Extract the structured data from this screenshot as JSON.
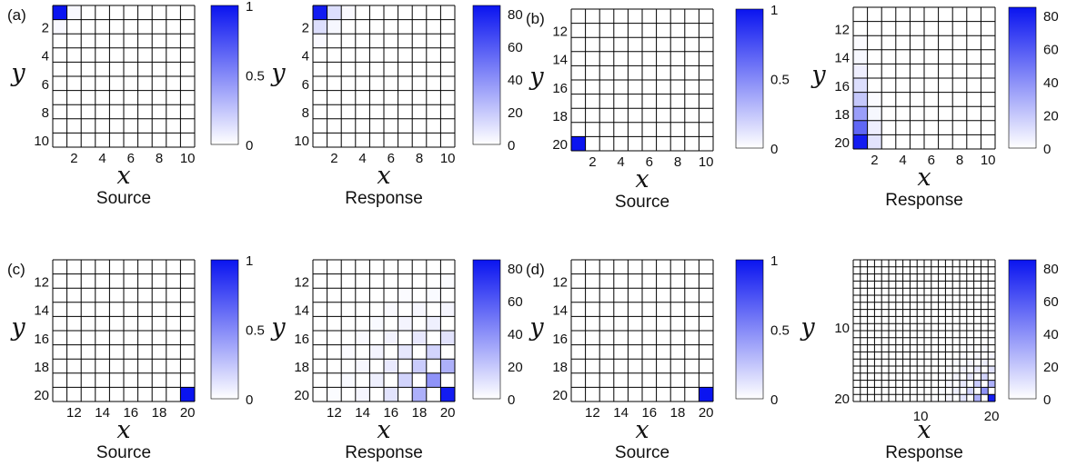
{
  "colors": {
    "max": "#0a14f0",
    "min": "#ffffff",
    "grid": "#000000"
  },
  "chart_data": [
    {
      "type": "heatmap",
      "panel": "(a)",
      "caption": "Source",
      "xlabel": "x",
      "ylabel": "y",
      "xlim": [
        1,
        10
      ],
      "ylim": [
        1,
        10
      ],
      "y_reversed": true,
      "xticks": [
        "2",
        "4",
        "6",
        "8",
        "10"
      ],
      "yticks": [
        "2",
        "4",
        "6",
        "8",
        "10"
      ],
      "colorbar": {
        "range": [
          0,
          1
        ],
        "ticks": [
          "0",
          "0.5",
          "1"
        ]
      },
      "cells": [
        {
          "x": 1,
          "y": 1,
          "v": 1
        },
        {
          "x": 2,
          "y": 1,
          "v": 0.03
        },
        {
          "x": 1,
          "y": 2,
          "v": 0.03
        }
      ]
    },
    {
      "type": "heatmap",
      "panel": "",
      "caption": "Response",
      "xlabel": "x",
      "ylabel": "y",
      "xlim": [
        1,
        10
      ],
      "ylim": [
        1,
        10
      ],
      "y_reversed": true,
      "xticks": [
        "2",
        "4",
        "6",
        "8",
        "10"
      ],
      "yticks": [
        "2",
        "4",
        "6",
        "8",
        "10"
      ],
      "colorbar": {
        "range": [
          0,
          85
        ],
        "ticks": [
          "0",
          "20",
          "40",
          "60",
          "80"
        ]
      },
      "cells": [
        {
          "x": 1,
          "y": 1,
          "v": 82
        },
        {
          "x": 2,
          "y": 1,
          "v": 12
        },
        {
          "x": 1,
          "y": 2,
          "v": 12
        },
        {
          "x": 3,
          "y": 1,
          "v": 2
        },
        {
          "x": 1,
          "y": 3,
          "v": 2
        },
        {
          "x": 2,
          "y": 2,
          "v": 3
        }
      ]
    },
    {
      "type": "heatmap",
      "panel": "(b)",
      "caption": "Source",
      "xlabel": "x",
      "ylabel": "y",
      "xlim": [
        1,
        10
      ],
      "ylim": [
        11,
        20
      ],
      "y_reversed": true,
      "xticks": [
        "2",
        "4",
        "6",
        "8",
        "10"
      ],
      "yticks": [
        "12",
        "14",
        "16",
        "18",
        "20"
      ],
      "colorbar": {
        "range": [
          0,
          1
        ],
        "ticks": [
          "0",
          "0.5",
          "1"
        ]
      },
      "cells": [
        {
          "x": 1,
          "y": 20,
          "v": 1
        }
      ]
    },
    {
      "type": "heatmap",
      "panel": "",
      "caption": "Response",
      "xlabel": "x",
      "ylabel": "y",
      "xlim": [
        1,
        10
      ],
      "ylim": [
        11,
        20
      ],
      "y_reversed": true,
      "xticks": [
        "2",
        "4",
        "6",
        "8",
        "10"
      ],
      "yticks": [
        "12",
        "14",
        "16",
        "18",
        "20"
      ],
      "colorbar": {
        "range": [
          0,
          85
        ],
        "ticks": [
          "0",
          "20",
          "40",
          "60",
          "80"
        ]
      },
      "cells": [
        {
          "x": 1,
          "y": 20,
          "v": 82
        },
        {
          "x": 1,
          "y": 19,
          "v": 55
        },
        {
          "x": 1,
          "y": 18,
          "v": 35
        },
        {
          "x": 1,
          "y": 17,
          "v": 20
        },
        {
          "x": 1,
          "y": 16,
          "v": 12
        },
        {
          "x": 1,
          "y": 15,
          "v": 6
        },
        {
          "x": 1,
          "y": 14,
          "v": 3
        },
        {
          "x": 1,
          "y": 13,
          "v": 1.5
        },
        {
          "x": 2,
          "y": 20,
          "v": 10
        },
        {
          "x": 2,
          "y": 19,
          "v": 6
        },
        {
          "x": 2,
          "y": 18,
          "v": 3
        },
        {
          "x": 2,
          "y": 17,
          "v": 1.5
        }
      ]
    },
    {
      "type": "heatmap",
      "panel": "(c)",
      "caption": "Source",
      "xlabel": "x",
      "ylabel": "y",
      "xlim": [
        11,
        20
      ],
      "ylim": [
        11,
        20
      ],
      "y_reversed": true,
      "xticks": [
        "12",
        "14",
        "16",
        "18",
        "20"
      ],
      "yticks": [
        "12",
        "14",
        "16",
        "18",
        "20"
      ],
      "colorbar": {
        "range": [
          0,
          1
        ],
        "ticks": [
          "0",
          "0.5",
          "1"
        ]
      },
      "cells": [
        {
          "x": 20,
          "y": 20,
          "v": 1
        }
      ]
    },
    {
      "type": "heatmap",
      "panel": "",
      "caption": "Response",
      "xlabel": "x",
      "ylabel": "y",
      "xlim": [
        11,
        20
      ],
      "ylim": [
        11,
        20
      ],
      "y_reversed": true,
      "xticks": [
        "12",
        "14",
        "16",
        "18",
        "20"
      ],
      "yticks": [
        "12",
        "14",
        "16",
        "18",
        "20"
      ],
      "colorbar": {
        "range": [
          0,
          85
        ],
        "ticks": [
          "0",
          "20",
          "40",
          "60",
          "80"
        ]
      },
      "pattern": "checkerboard-corner",
      "corner": [
        20,
        20
      ],
      "peak": 82
    },
    {
      "type": "heatmap",
      "panel": "(d)",
      "caption": "Source",
      "xlabel": "x",
      "ylabel": "y",
      "xlim": [
        11,
        20
      ],
      "ylim": [
        11,
        20
      ],
      "y_reversed": true,
      "xticks": [
        "12",
        "14",
        "16",
        "18",
        "20"
      ],
      "yticks": [
        "12",
        "14",
        "16",
        "18",
        "20"
      ],
      "colorbar": {
        "range": [
          0,
          1
        ],
        "ticks": [
          "0",
          "0.5",
          "1"
        ]
      },
      "cells": [
        {
          "x": 20,
          "y": 20,
          "v": 1
        }
      ]
    },
    {
      "type": "heatmap",
      "panel": "",
      "caption": "Response",
      "xlabel": "x",
      "ylabel": "y",
      "xlim": [
        1,
        20
      ],
      "ylim": [
        1,
        20
      ],
      "y_reversed": true,
      "xticks": [
        "10",
        "20"
      ],
      "yticks": [
        "10",
        "20"
      ],
      "colorbar": {
        "range": [
          0,
          85
        ],
        "ticks": [
          "0",
          "20",
          "40",
          "60",
          "80"
        ]
      },
      "pattern": "checkerboard-corner",
      "corner": [
        20,
        20
      ],
      "peak": 82
    }
  ]
}
